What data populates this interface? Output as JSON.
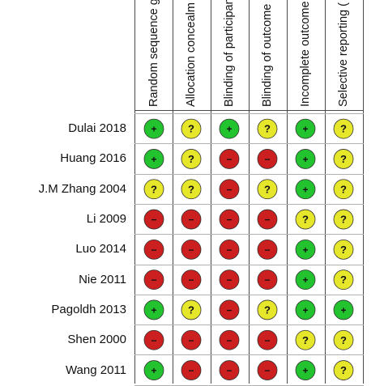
{
  "chart_data": {
    "type": "table",
    "columns": [
      "Random sequence g",
      "Allocation concealm",
      "Blinding of participan",
      "Blinding of outcome",
      "Incomplete outcome",
      "Selective reporting ("
    ],
    "rows": [
      {
        "study": "Dulai 2018",
        "judgements": [
          "low",
          "unclear",
          "low",
          "unclear",
          "low",
          "unclear"
        ]
      },
      {
        "study": "Huang 2016",
        "judgements": [
          "low",
          "unclear",
          "high",
          "high",
          "low",
          "unclear"
        ]
      },
      {
        "study": "J.M Zhang 2004",
        "judgements": [
          "unclear",
          "unclear",
          "high",
          "unclear",
          "low",
          "unclear"
        ]
      },
      {
        "study": "Li 2009",
        "judgements": [
          "high",
          "high",
          "high",
          "high",
          "unclear",
          "unclear"
        ]
      },
      {
        "study": "Luo 2014",
        "judgements": [
          "high",
          "high",
          "high",
          "high",
          "low",
          "unclear"
        ]
      },
      {
        "study": "Nie 2011",
        "judgements": [
          "high",
          "high",
          "high",
          "high",
          "low",
          "unclear"
        ]
      },
      {
        "study": "Pagoldh 2013",
        "judgements": [
          "low",
          "unclear",
          "high",
          "unclear",
          "low",
          "low"
        ]
      },
      {
        "study": "Shen 2000",
        "judgements": [
          "high",
          "high",
          "high",
          "high",
          "unclear",
          "unclear"
        ]
      },
      {
        "study": "Wang 2011",
        "judgements": [
          "low",
          "high",
          "high",
          "high",
          "low",
          "unclear"
        ]
      }
    ],
    "symbols": {
      "low": {
        "glyph": "+",
        "color": "#22c32e"
      },
      "unclear": {
        "glyph": "?",
        "color": "#e6e62b"
      },
      "high": {
        "glyph": "−",
        "color": "#cc1f1f"
      }
    }
  }
}
